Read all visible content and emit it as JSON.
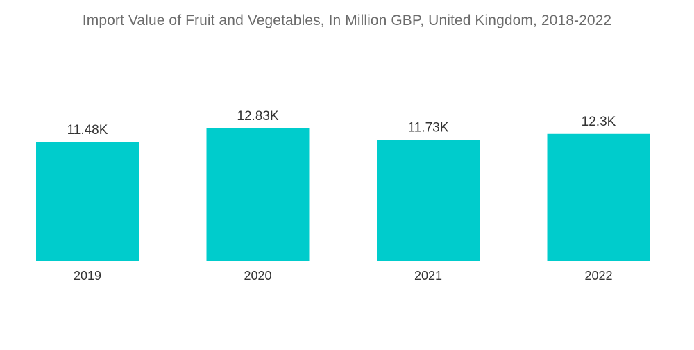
{
  "chart_data": {
    "type": "bar",
    "title": "Import Value of Fruit and Vegetables, In Million GBP, United Kingdom, 2018-2022",
    "categories": [
      "2019",
      "2020",
      "2021",
      "2022"
    ],
    "values": [
      11480,
      12830,
      11730,
      12300
    ],
    "value_labels": [
      "11.48K",
      "12.83K",
      "11.73K",
      "12.3K"
    ],
    "xlabel": "",
    "ylabel": "",
    "ylim": [
      0,
      14500
    ],
    "grid": false,
    "legend": "none",
    "bar_color": "#00cccc"
  }
}
